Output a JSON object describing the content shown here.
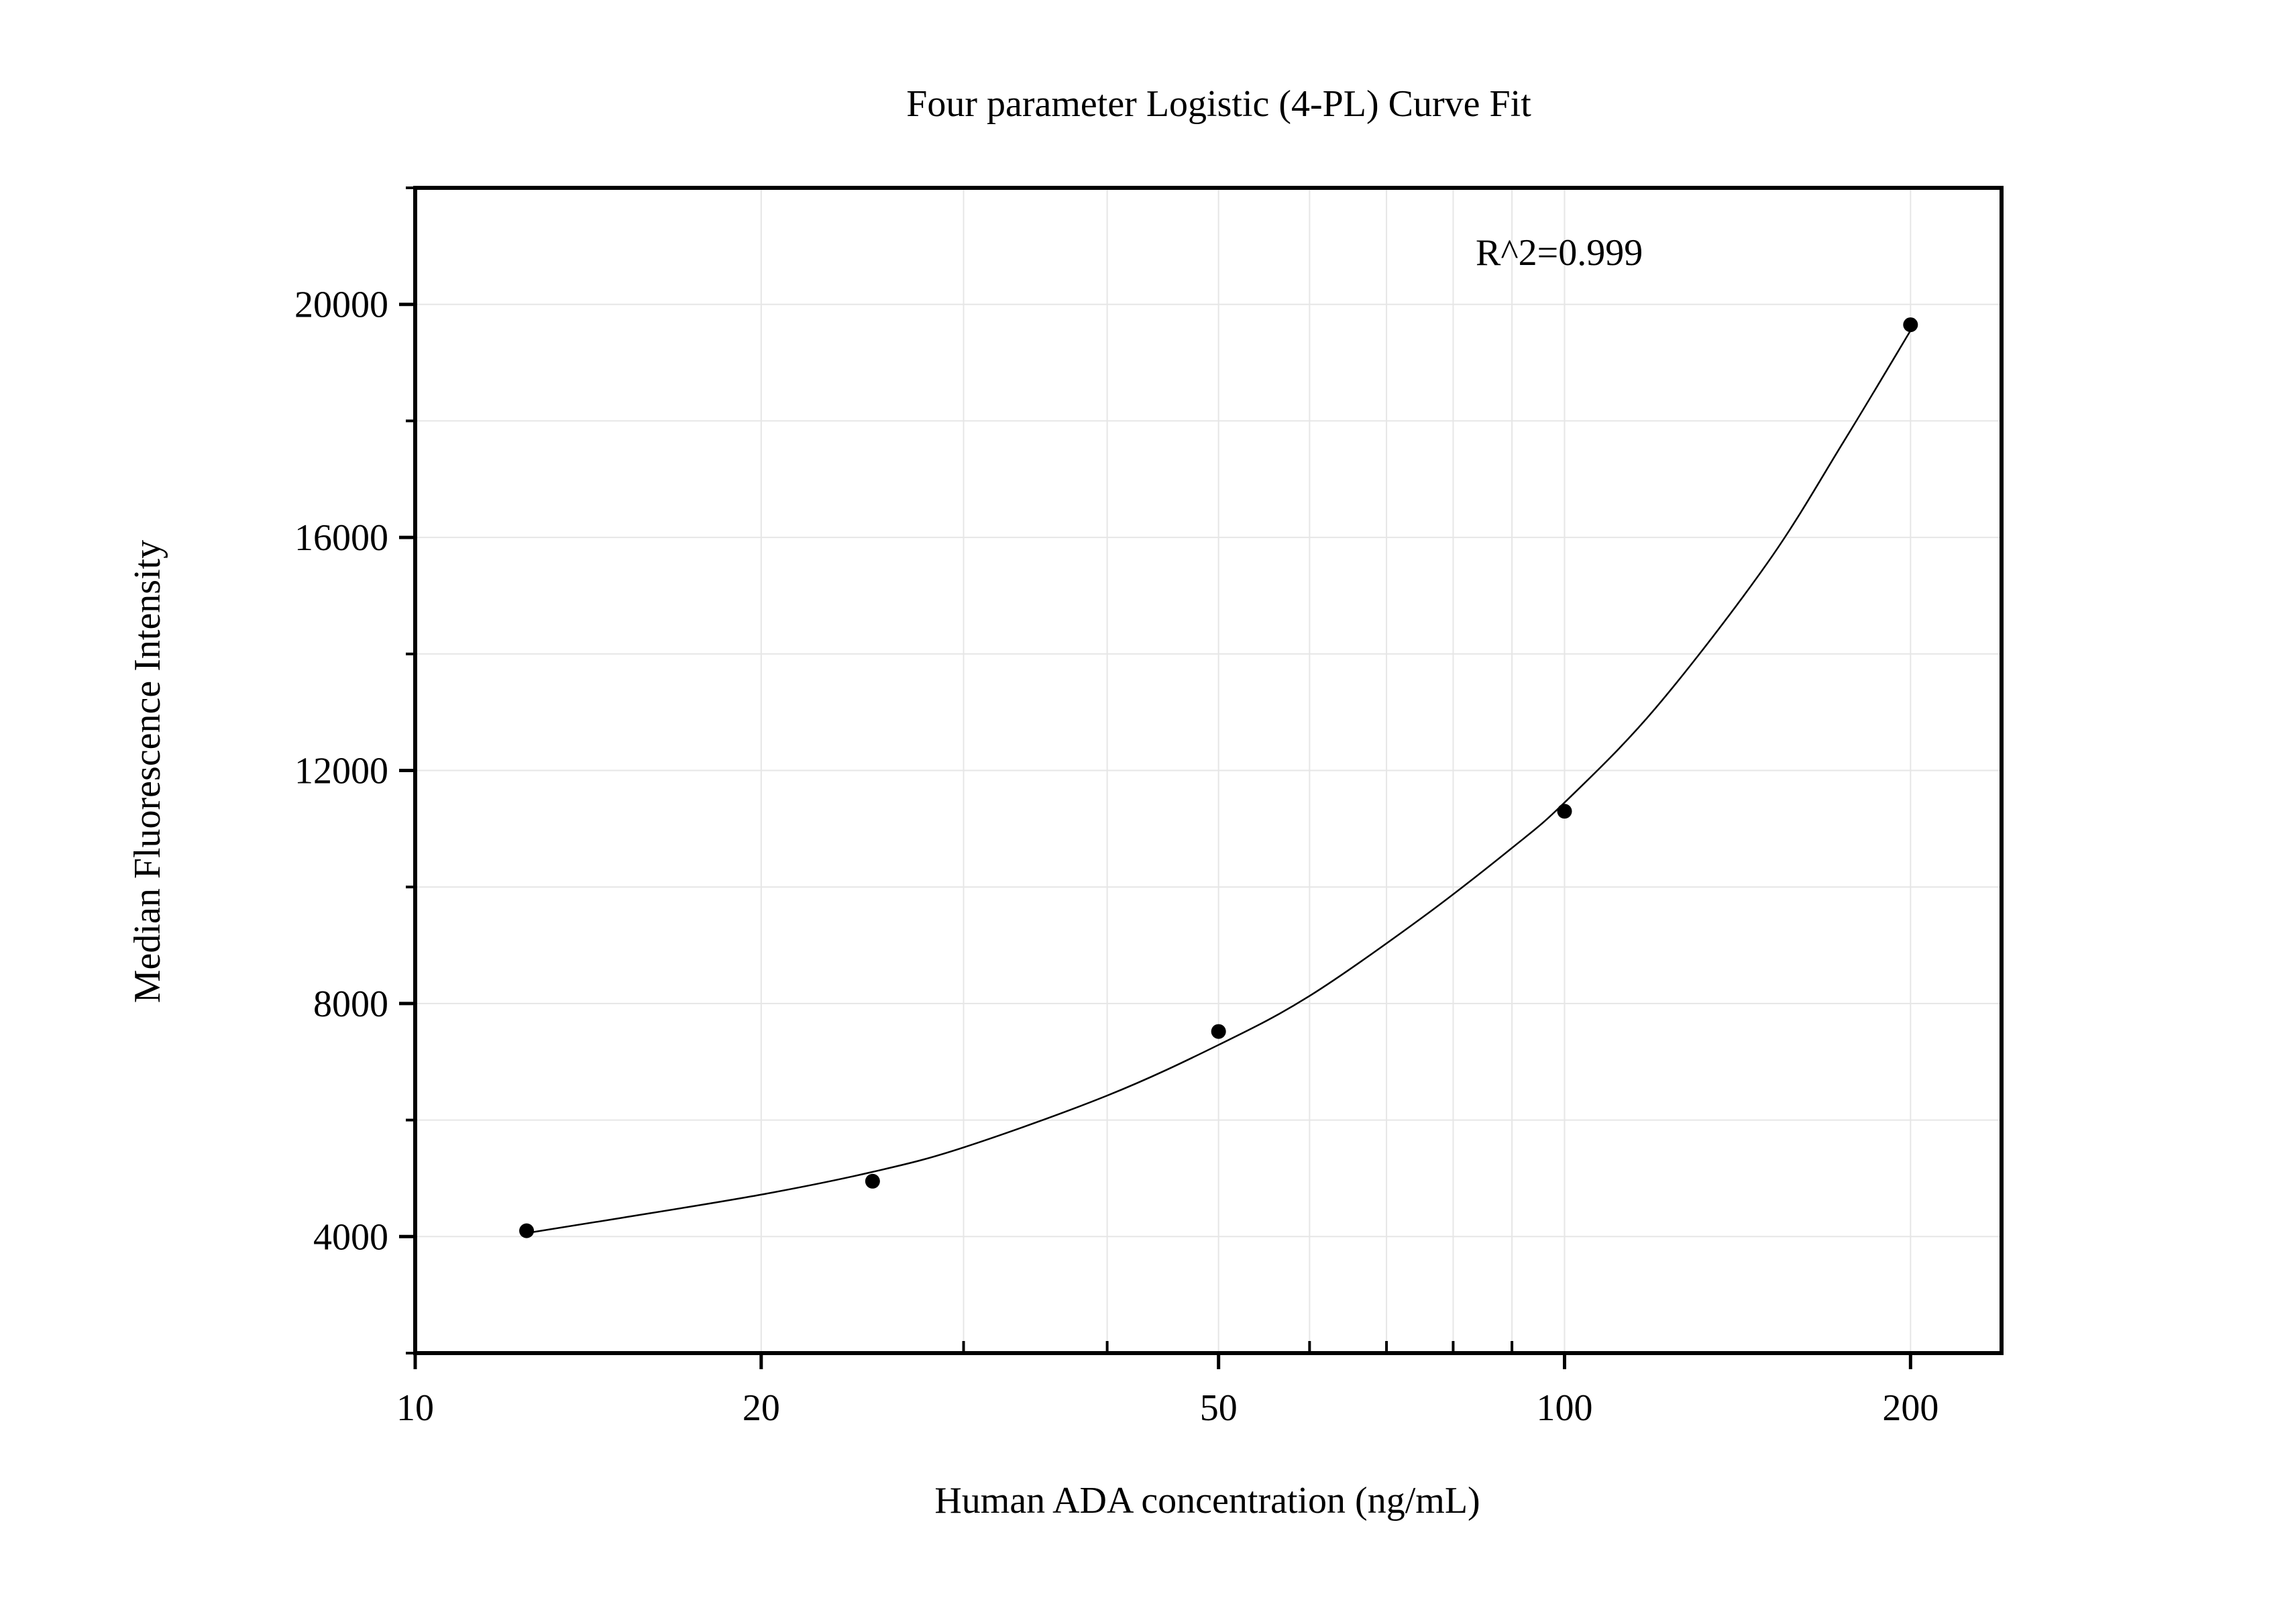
{
  "chart_data": {
    "type": "scatter",
    "title": "Four parameter Logistic (4-PL) Curve Fit",
    "xlabel": "Human ADA concentration (ng/mL)",
    "ylabel": "Median Fluorescence Intensity",
    "x_scale": "log",
    "xlim": [
      10,
      240
    ],
    "ylim": [
      2000,
      22000
    ],
    "x_ticks": [
      {
        "value": 10,
        "label": "10"
      },
      {
        "value": 20,
        "label": "20"
      },
      {
        "value": 50,
        "label": "50"
      },
      {
        "value": 100,
        "label": "100"
      },
      {
        "value": 200,
        "label": "200"
      }
    ],
    "x_minor_ticks": [
      30,
      40,
      60,
      70,
      80,
      90
    ],
    "y_ticks": [
      {
        "value": 4000,
        "label": "4000"
      },
      {
        "value": 8000,
        "label": "8000"
      },
      {
        "value": 12000,
        "label": "12000"
      },
      {
        "value": 16000,
        "label": "16000"
      },
      {
        "value": 20000,
        "label": "20000"
      }
    ],
    "y_minor_ticks": [
      2000,
      6000,
      10000,
      14000,
      18000,
      22000
    ],
    "grid": true,
    "series": [
      {
        "points": [
          {
            "x": 12.5,
            "y": 4100
          },
          {
            "x": 25,
            "y": 4950
          },
          {
            "x": 50,
            "y": 7520
          },
          {
            "x": 100,
            "y": 11300
          },
          {
            "x": 200,
            "y": 19650
          }
        ],
        "color": "#000000"
      }
    ],
    "fit_curve": {
      "model": "4-PL",
      "points": [
        {
          "x": 12.5,
          "y": 4060
        },
        {
          "x": 15,
          "y": 4310
        },
        {
          "x": 20,
          "y": 4720
        },
        {
          "x": 25,
          "y": 5110
        },
        {
          "x": 30,
          "y": 5530
        },
        {
          "x": 40,
          "y": 6420
        },
        {
          "x": 50,
          "y": 7290
        },
        {
          "x": 60,
          "y": 8130
        },
        {
          "x": 75,
          "y": 9460
        },
        {
          "x": 90,
          "y": 10670
        },
        {
          "x": 100,
          "y": 11450
        },
        {
          "x": 120,
          "y": 13070
        },
        {
          "x": 150,
          "y": 15550
        },
        {
          "x": 175,
          "y": 17650
        },
        {
          "x": 200,
          "y": 19550
        }
      ],
      "color": "#000000"
    },
    "annotations": [
      {
        "text": "R^2=0.999"
      }
    ]
  }
}
